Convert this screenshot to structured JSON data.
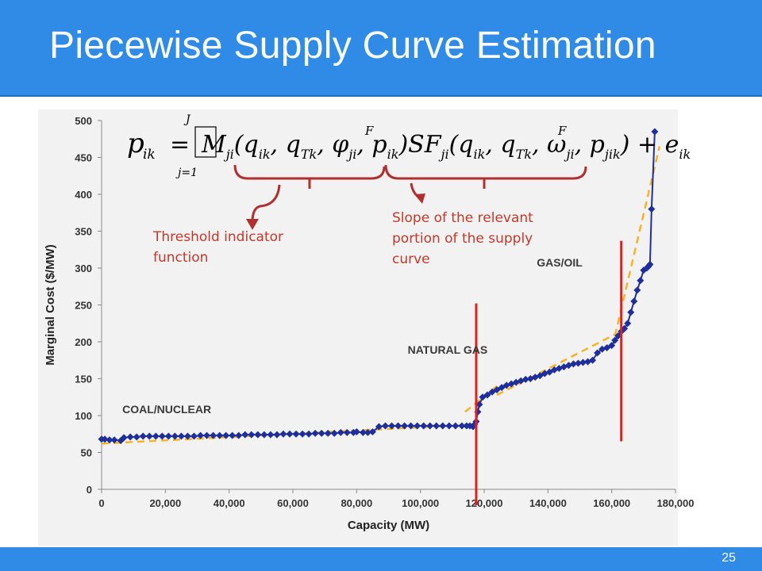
{
  "slide": {
    "title": "Piecewise Supply Curve Estimation",
    "page_number": "25"
  },
  "annotations": {
    "threshold": "Threshold indicator function",
    "slope": "Slope of the relevant portion of the supply curve"
  },
  "formula": {
    "lhs": "p",
    "lhs_sub": "ik",
    "sum_upper": "J",
    "sum_lower": "j=1",
    "body": "M_ji(q_ik, q_Tk, φ_ji, p^F_ik) SF_ji(q_ik, q_Tk, ω_ji, p^F_jik) + e_ik"
  },
  "colors": {
    "header": "#2f8be6",
    "series": "#1f2f9a",
    "fit": "#f5b325",
    "breaks": "#e0201b",
    "annotation": "#c0392b"
  },
  "chart_data": {
    "type": "scatter",
    "xlabel": "Capacity (MW)",
    "ylabel": "Marginal Cost ($/MW)",
    "xlim": [
      0,
      180000
    ],
    "ylim": [
      0,
      500
    ],
    "x_ticks": [
      0,
      20000,
      40000,
      60000,
      80000,
      100000,
      120000,
      140000,
      160000,
      180000
    ],
    "x_tick_labels": [
      "0",
      "20,000",
      "40,000",
      "60,000",
      "80,000",
      "100,000",
      "120,000",
      "140,000",
      "160,000",
      "180,000"
    ],
    "y_ticks": [
      0,
      50,
      100,
      150,
      200,
      250,
      300,
      350,
      400,
      450,
      500
    ],
    "y_tick_labels": [
      "0",
      "50",
      "100",
      "150",
      "200",
      "250",
      "300",
      "350",
      "400",
      "450",
      "500"
    ],
    "grid": false,
    "region_labels": [
      {
        "text": "COAL/NUCLEAR",
        "x": 6500,
        "y": 103
      },
      {
        "text": "NATURAL GAS",
        "x": 96000,
        "y": 184
      },
      {
        "text": "GAS/OIL",
        "x": 136500,
        "y": 302
      }
    ],
    "breakpoints": [
      117500,
      163000
    ],
    "break_y_range": [
      [
        0,
        252
      ],
      [
        65,
        337
      ]
    ],
    "series": [
      {
        "name": "",
        "x": [
          0,
          1000,
          2500,
          4000,
          6000,
          7000,
          9000,
          11000,
          13000,
          15000,
          17000,
          19000,
          21000,
          23000,
          25000,
          27000,
          29000,
          31000,
          33000,
          35000,
          37000,
          39000,
          41000,
          43000,
          45000,
          47000,
          49000,
          51000,
          53000,
          55000,
          57000,
          59000,
          61000,
          63000,
          65000,
          67000,
          69000,
          71000,
          73000,
          75000,
          77000,
          79000,
          80000,
          82000,
          83500,
          85000,
          87000,
          89000,
          91000,
          93000,
          95000,
          97000,
          99000,
          101000,
          103000,
          105000,
          107000,
          109000,
          111000,
          113000,
          114500,
          115500,
          116500,
          117000,
          117500,
          118000,
          118500,
          119500,
          121000,
          122500,
          124000,
          125500,
          127000,
          128500,
          130000,
          131500,
          133000,
          134500,
          136000,
          137500,
          139000,
          140500,
          142000,
          143500,
          145000,
          146500,
          148000,
          149500,
          151000,
          152500,
          154000,
          155500,
          157000,
          158500,
          160000,
          161000,
          162000,
          163000,
          164000,
          165000,
          166000,
          167000,
          168000,
          169000,
          170000,
          171000,
          171500,
          172000,
          172500,
          173500
        ],
        "y": [
          68,
          68,
          67,
          67,
          66,
          70,
          71,
          71,
          72,
          72,
          72,
          72,
          72,
          72,
          72,
          72,
          72,
          73,
          73,
          73,
          73,
          73,
          73,
          73,
          74,
          74,
          74,
          74,
          74,
          74,
          75,
          75,
          75,
          75,
          75,
          76,
          76,
          76,
          76,
          77,
          77,
          77,
          78,
          77,
          77,
          78,
          85,
          86,
          86,
          86,
          86,
          86,
          86,
          86,
          86,
          86,
          86,
          86,
          86,
          86,
          86,
          86,
          85,
          88,
          92,
          105,
          115,
          125,
          128,
          132,
          135,
          138,
          141,
          143,
          145,
          147,
          149,
          150,
          152,
          154,
          157,
          159,
          162,
          164,
          166,
          168,
          170,
          171,
          172,
          173,
          175,
          185,
          190,
          192,
          195,
          202,
          208,
          214,
          218,
          225,
          240,
          255,
          270,
          283,
          297,
          300,
          302,
          305,
          380,
          485
        ]
      }
    ],
    "fit_segments": [
      {
        "x": [
          0,
          117500
        ],
        "y": [
          62,
          88
        ]
      },
      {
        "x": [
          114000,
          124000
        ],
        "y": [
          105,
          140
        ]
      },
      {
        "x": [
          124000,
          161000
        ],
        "y": [
          128,
          210
        ]
      },
      {
        "x": [
          161000,
          175000
        ],
        "y": [
          208,
          465
        ]
      }
    ]
  }
}
